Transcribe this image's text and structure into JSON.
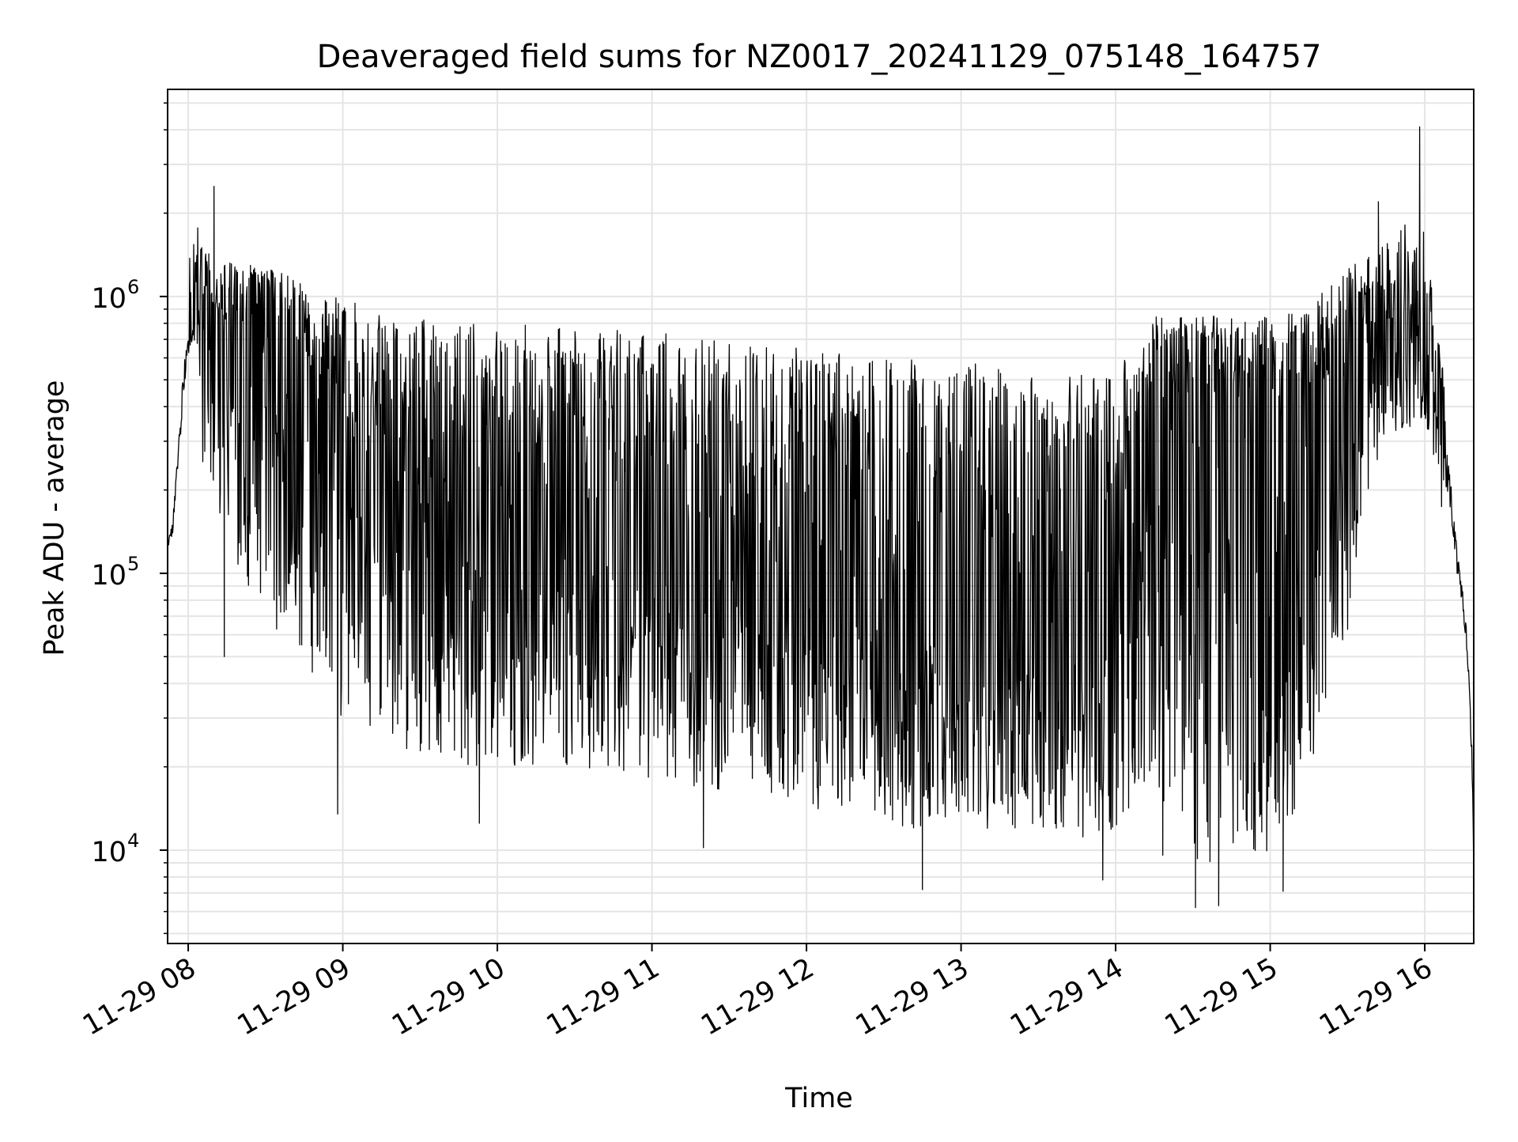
{
  "chart_data": {
    "type": "line",
    "title": "Deaveraged field sums for NZ0017_20241129_075148_164757",
    "xlabel": "Time",
    "ylabel": "Peak ADU - average",
    "yscale": "log",
    "xlim": [
      "2024-11-29 07:52",
      "2024-11-29 16:19"
    ],
    "ylim": [
      4600,
      5600000
    ],
    "grid": "major and minor",
    "line_color": "#000000",
    "grid_color": "#e5e5e5",
    "x_ticks": [
      {
        "value": "2024-11-29 08:00",
        "label": "11-29 08"
      },
      {
        "value": "2024-11-29 09:00",
        "label": "11-29 09"
      },
      {
        "value": "2024-11-29 10:00",
        "label": "11-29 10"
      },
      {
        "value": "2024-11-29 11:00",
        "label": "11-29 11"
      },
      {
        "value": "2024-11-29 12:00",
        "label": "11-29 12"
      },
      {
        "value": "2024-11-29 13:00",
        "label": "11-29 13"
      },
      {
        "value": "2024-11-29 14:00",
        "label": "11-29 14"
      },
      {
        "value": "2024-11-29 15:00",
        "label": "11-29 15"
      },
      {
        "value": "2024-11-29 16:00",
        "label": "11-29 16"
      }
    ],
    "y_ticks": [
      {
        "value": 10000,
        "base": "10",
        "exp": "4"
      },
      {
        "value": 100000,
        "base": "10",
        "exp": "5"
      },
      {
        "value": 1000000,
        "base": "10",
        "exp": "6"
      }
    ],
    "series": [
      {
        "x": [
          "2024-11-29 07:52",
          "2024-11-29 07:54",
          "2024-11-29 07:56",
          "2024-11-29 07:58",
          "2024-11-29 08:00",
          "2024-11-29 08:02",
          "2024-11-29 08:04",
          "2024-11-29 08:06",
          "2024-11-29 08:08",
          "2024-11-29 08:12",
          "2024-11-29 08:20",
          "2024-11-29 08:30",
          "2024-11-29 08:40",
          "2024-11-29 08:50",
          "2024-11-29 09:00",
          "2024-11-29 09:15",
          "2024-11-29 09:30",
          "2024-11-29 09:45",
          "2024-11-29 10:00",
          "2024-11-29 10:15",
          "2024-11-29 10:30",
          "2024-11-29 10:45",
          "2024-11-29 11:00",
          "2024-11-29 11:15",
          "2024-11-29 11:30",
          "2024-11-29 11:45",
          "2024-11-29 12:00",
          "2024-11-29 12:15",
          "2024-11-29 12:30",
          "2024-11-29 12:45",
          "2024-11-29 13:00",
          "2024-11-29 13:15",
          "2024-11-29 13:30",
          "2024-11-29 13:45",
          "2024-11-29 14:00",
          "2024-11-29 14:12",
          "2024-11-29 14:15",
          "2024-11-29 14:30",
          "2024-11-29 14:45",
          "2024-11-29 15:00",
          "2024-11-29 15:15",
          "2024-11-29 15:30",
          "2024-11-29 15:45",
          "2024-11-29 15:58",
          "2024-11-29 16:04",
          "2024-11-29 16:08",
          "2024-11-29 16:12",
          "2024-11-29 16:16",
          "2024-11-29 16:19"
        ],
        "y": [
          125000,
          145000,
          250000,
          450000,
          700000,
          800000,
          950000,
          600000,
          700000,
          750000,
          800000,
          850000,
          650000,
          400000,
          300000,
          200000,
          170000,
          150000,
          140000,
          135000,
          130000,
          130000,
          120000,
          115000,
          105000,
          95000,
          90000,
          80000,
          70000,
          65000,
          60000,
          57000,
          55000,
          55000,
          60000,
          380000,
          400000,
          400000,
          400000,
          380000,
          380000,
          500000,
          650000,
          800000,
          500000,
          250000,
          120000,
          60000,
          8500
        ],
        "high": [
          150000,
          180000,
          350000,
          900000,
          1300000,
          1600000,
          1800000,
          1400000,
          1500000,
          1400000,
          1300000,
          1300000,
          1200000,
          1000000,
          1000000,
          900000,
          850000,
          800000,
          800000,
          800000,
          780000,
          760000,
          750000,
          720000,
          700000,
          680000,
          650000,
          620000,
          600000,
          600000,
          580000,
          560000,
          540000,
          520000,
          520000,
          800000,
          850000,
          850000,
          850000,
          850000,
          900000,
          1300000,
          1600000,
          2000000,
          900000,
          450000,
          200000,
          90000,
          20000
        ],
        "low": [
          110000,
          120000,
          200000,
          300000,
          600000,
          700000,
          500000,
          200000,
          200000,
          150000,
          100000,
          70000,
          50000,
          35000,
          30000,
          25000,
          22000,
          20000,
          20000,
          20000,
          19000,
          19000,
          18000,
          17000,
          16000,
          15000,
          14000,
          13000,
          12000,
          12000,
          12000,
          12000,
          12000,
          11000,
          12000,
          15000,
          9000,
          8000,
          9000,
          10000,
          15000,
          60000,
          300000,
          350000,
          250000,
          120000,
          70000,
          45000,
          8000
        ],
        "peaks": [
          {
            "x": "2024-11-29 08:10",
            "y": 2500000
          },
          {
            "x": "2024-11-29 15:58",
            "y": 4100000
          },
          {
            "x": "2024-11-29 15:42",
            "y": 2200000
          }
        ],
        "dips": [
          {
            "x": "2024-11-29 08:14",
            "y": 50000
          },
          {
            "x": "2024-11-29 08:58",
            "y": 13500
          },
          {
            "x": "2024-11-29 09:53",
            "y": 12500
          },
          {
            "x": "2024-11-29 11:20",
            "y": 10200
          },
          {
            "x": "2024-11-29 12:45",
            "y": 7200
          },
          {
            "x": "2024-11-29 13:55",
            "y": 7800
          },
          {
            "x": "2024-11-29 14:31",
            "y": 6200
          },
          {
            "x": "2024-11-29 14:40",
            "y": 6300
          },
          {
            "x": "2024-11-29 15:05",
            "y": 7100
          }
        ]
      }
    ]
  }
}
